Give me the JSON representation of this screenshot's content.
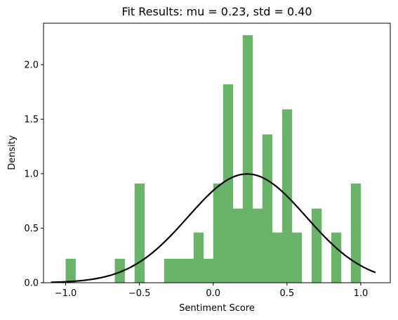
{
  "chart_data": {
    "type": "bar",
    "title": "Fit Results: mu = 0.23,  std = 0.40",
    "xlabel": "Sentiment Score",
    "ylabel": "Density",
    "xlim": [
      -1.15,
      1.2
    ],
    "ylim": [
      0,
      2.38
    ],
    "grid": false,
    "bar_color": "#6ab46a",
    "curve_color": "#000000",
    "x_ticks": [
      {
        "value": -1.0,
        "label": "−1.0"
      },
      {
        "value": -0.5,
        "label": "−0.5"
      },
      {
        "value": 0.0,
        "label": "0.0"
      },
      {
        "value": 0.5,
        "label": "0.5"
      },
      {
        "value": 1.0,
        "label": "1.0"
      }
    ],
    "y_ticks": [
      {
        "value": 0.0,
        "label": "0.0"
      },
      {
        "value": 0.5,
        "label": "0.5"
      },
      {
        "value": 1.0,
        "label": "1.0"
      },
      {
        "value": 1.5,
        "label": "1.5"
      },
      {
        "value": 2.0,
        "label": "2.0"
      }
    ],
    "bin_width": 0.0667,
    "bins": [
      {
        "x": -1.0,
        "density": 0.22
      },
      {
        "x": -0.667,
        "density": 0.22
      },
      {
        "x": -0.533,
        "density": 0.91
      },
      {
        "x": -0.333,
        "density": 0.22
      },
      {
        "x": -0.267,
        "density": 0.22
      },
      {
        "x": -0.2,
        "density": 0.22
      },
      {
        "x": -0.133,
        "density": 0.46
      },
      {
        "x": -0.067,
        "density": 0.22
      },
      {
        "x": 0.0,
        "density": 0.91
      },
      {
        "x": 0.067,
        "density": 1.82
      },
      {
        "x": 0.133,
        "density": 0.68
      },
      {
        "x": 0.2,
        "density": 2.27
      },
      {
        "x": 0.267,
        "density": 0.68
      },
      {
        "x": 0.333,
        "density": 1.36
      },
      {
        "x": 0.4,
        "density": 0.46
      },
      {
        "x": 0.467,
        "density": 1.59
      },
      {
        "x": 0.533,
        "density": 0.46
      },
      {
        "x": 0.667,
        "density": 0.68
      },
      {
        "x": 0.8,
        "density": 0.46
      },
      {
        "x": 0.933,
        "density": 0.91
      }
    ],
    "fit": {
      "mu": 0.23,
      "std": 0.4,
      "x_range": [
        -1.1,
        1.1
      ]
    }
  }
}
